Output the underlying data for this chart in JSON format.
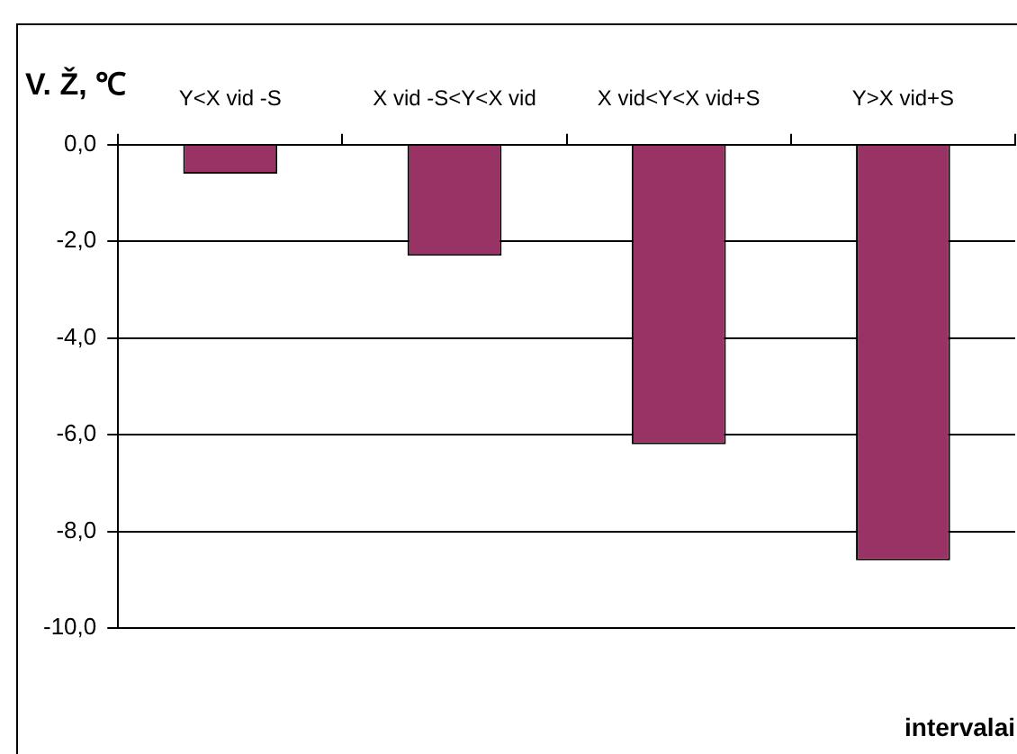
{
  "chart_data": {
    "type": "bar",
    "ylabel": "V. Ž, ℃",
    "xlabel": "intervalai",
    "categories": [
      "Y<X vid -S",
      "X vid -S<Y<X vid",
      "X vid<Y<X vid+S",
      "Y>X vid+S"
    ],
    "values": [
      -0.6,
      -2.3,
      -6.2,
      -8.6
    ],
    "color": "#993366",
    "ylim": [
      -10,
      0
    ],
    "yticks": [
      {
        "value": 0,
        "label": "0,0"
      },
      {
        "value": -2,
        "label": "-2,0"
      },
      {
        "value": -4,
        "label": "-4,0"
      },
      {
        "value": -6,
        "label": "-6,0"
      },
      {
        "value": -8,
        "label": "-8,0"
      },
      {
        "value": -10,
        "label": "-10,0"
      }
    ],
    "grid": "y"
  }
}
